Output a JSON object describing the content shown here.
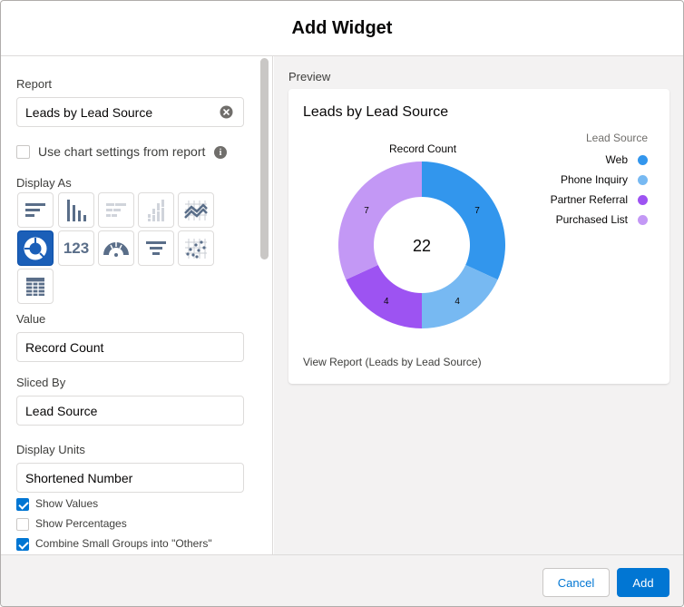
{
  "modal": {
    "title": "Add Widget"
  },
  "left": {
    "report_label": "Report",
    "report_value": "Leads by Lead Source",
    "use_chart_settings_label": "Use chart settings from report",
    "display_as_label": "Display As",
    "display_types": [
      "horizontal-bar-chart-icon",
      "vertical-bar-chart-icon",
      "stacked-horizontal-bar-chart-icon",
      "stacked-vertical-bar-chart-icon",
      "line-chart-icon",
      "donut-chart-icon",
      "metric-icon",
      "gauge-icon",
      "funnel-chart-icon",
      "scatter-chart-icon",
      "table-icon"
    ],
    "metric_text": "123",
    "selected_display": "donut-chart-icon",
    "value_label": "Value",
    "value_value": "Record Count",
    "sliced_by_label": "Sliced By",
    "sliced_by_value": "Lead Source",
    "display_units_label": "Display Units",
    "display_units_value": "Shortened Number",
    "options": [
      {
        "label": "Show Values",
        "checked": true
      },
      {
        "label": "Show Percentages",
        "checked": false
      },
      {
        "label": "Combine Small Groups into \"Others\"",
        "checked": true
      }
    ]
  },
  "preview": {
    "label": "Preview",
    "card_title": "Leads by Lead Source",
    "view_report": "View Report (Leads by Lead Source)"
  },
  "chart_data": {
    "type": "donut",
    "title": "Record Count",
    "legend_title": "Lead Source",
    "legend_position": "right",
    "total_label": "22",
    "series": [
      {
        "name": "Web",
        "value": 7,
        "color": "#3296ed"
      },
      {
        "name": "Phone Inquiry",
        "value": 4,
        "color": "#77b9f2"
      },
      {
        "name": "Partner Referral",
        "value": 4,
        "color": "#9d53f2"
      },
      {
        "name": "Purchased List",
        "value": 7,
        "color": "#c398f5"
      }
    ]
  },
  "footer": {
    "cancel_label": "Cancel",
    "add_label": "Add"
  },
  "colors": {
    "brand": "#0176d3",
    "selected_tile": "#1b5fb8",
    "icon_gray": "#5a6e89"
  }
}
